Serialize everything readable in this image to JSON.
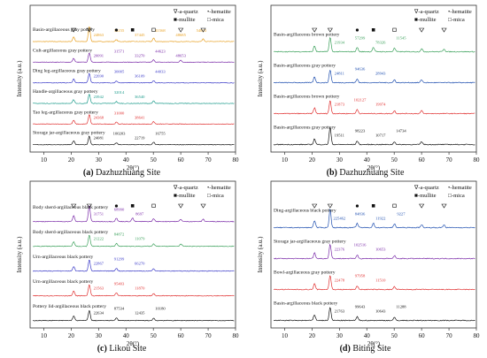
{
  "figure": {
    "x_unit_label": "2θ(°)",
    "y_label": "Intensity (a.u.)",
    "x_ticks": [
      10,
      20,
      30,
      40,
      50,
      60,
      70,
      80
    ],
    "colors": [
      "#111111",
      "#e03030",
      "#1a9a8a",
      "#3b3bc8",
      "#7a2aa8",
      "#e8a020",
      "#3aa05a",
      "#2050b0"
    ]
  },
  "chart_data": [
    {
      "type": "line",
      "caption_label": "(a)",
      "caption_text": " Dazhuzhuang Site",
      "xlabel": "2θ(°)",
      "ylabel": "Intensity (a.u.)",
      "xlim": [
        5,
        80
      ],
      "legend": {
        "qz": "∇-a-quartz",
        "hem": "•-hematite",
        "mul": "■-mullite",
        "mica": "□-mica"
      },
      "series": [
        {
          "name": "Basin-argillaceous gray pottery",
          "color": "#e8a020",
          "peaks": [
            [
              26.6,
              1.6
            ],
            [
              20.9,
              0.5
            ],
            [
              50.1,
              0.35
            ],
            [
              68.2,
              0.3
            ],
            [
              36.5,
              0.2
            ]
          ],
          "labels": [
            "24863",
            "33155",
            "37445",
            "41568",
            "48685",
            "54823"
          ]
        },
        {
          "name": "Cult-argillaceous gray pottery",
          "color": "#7a2aa8",
          "peaks": [
            [
              26.6,
              1.0
            ],
            [
              20.9,
              0.4
            ],
            [
              50.1,
              0.25
            ],
            [
              60.0,
              0.2
            ]
          ],
          "labels": [
            "20091",
            "31571",
            "33270",
            "44623",
            "48653"
          ]
        },
        {
          "name": "Ding leg-argillaceous gray pottery",
          "color": "#3b3bc8",
          "peaks": [
            [
              26.6,
              1.0
            ],
            [
              20.9,
              0.4
            ],
            [
              50.1,
              0.25
            ],
            [
              36.5,
              0.2
            ]
          ],
          "labels": [
            "22690",
            "30005",
            "36109",
            "44033"
          ]
        },
        {
          "name": "Handle-argillaceous gray pottery",
          "color": "#1a9a8a",
          "peaks": [
            [
              26.6,
              1.0
            ],
            [
              20.9,
              0.4
            ],
            [
              50.1,
              0.25
            ],
            [
              36.5,
              0.2
            ]
          ],
          "labels": [
            "23942",
            "32014",
            "36540"
          ]
        },
        {
          "name": "Tao leg-argillaceous gray pottery",
          "color": "#e03030",
          "peaks": [
            [
              26.6,
              1.0
            ],
            [
              20.9,
              0.4
            ],
            [
              50.1,
              0.25
            ],
            [
              36.5,
              0.2
            ]
          ],
          "labels": [
            "24368",
            "31000",
            "38641"
          ]
        },
        {
          "name": "Storage jar-argillaceous gray pottery",
          "color": "#111111",
          "peaks": [
            [
              26.6,
              0.9
            ],
            [
              20.9,
              0.4
            ],
            [
              50.1,
              0.25
            ],
            [
              36.5,
              0.2
            ]
          ],
          "labels": [
            "24081",
            "100203",
            "22719",
            "16755"
          ]
        }
      ]
    },
    {
      "type": "line",
      "caption_label": "(b)",
      "caption_text": " Dazhuzhuang Site",
      "xlabel": "2θ(°)",
      "ylabel": "Intensity (a.u.)",
      "xlim": [
        5,
        80
      ],
      "legend": {
        "qz": "∇-a-quartz",
        "hem": "•-hematite",
        "mul": "■-mullite",
        "mica": "□-mica"
      },
      "series": [
        {
          "name": "Basin-argillaceous brown pottery",
          "color": "#3aa05a",
          "peaks": [
            [
              26.6,
              1.0
            ],
            [
              20.9,
              0.4
            ],
            [
              36.5,
              0.3
            ],
            [
              42.4,
              0.3
            ],
            [
              50.1,
              0.25
            ],
            [
              60.0,
              0.2
            ],
            [
              68.2,
              0.2
            ]
          ],
          "labels": [
            "21934",
            "57299",
            "78326",
            "11545"
          ]
        },
        {
          "name": "Basin-argillaceous gray pottery",
          "color": "#2050b0",
          "peaks": [
            [
              26.6,
              0.9
            ],
            [
              20.9,
              0.4
            ],
            [
              36.5,
              0.25
            ],
            [
              50.1,
              0.2
            ],
            [
              60.0,
              0.2
            ]
          ],
          "labels": [
            "24811",
            "94636",
            "28943"
          ]
        },
        {
          "name": "Basin-argillaceous brown pottery",
          "color": "#e03030",
          "peaks": [
            [
              26.6,
              0.9
            ],
            [
              20.9,
              0.4
            ],
            [
              36.5,
              0.3
            ],
            [
              50.1,
              0.2
            ],
            [
              60.0,
              0.2
            ]
          ],
          "labels": [
            "21873",
            "102127",
            "19974"
          ]
        },
        {
          "name": "Basin-argillaceous gray pottery",
          "color": "#111111",
          "peaks": [
            [
              26.6,
              1.2
            ],
            [
              20.9,
              0.4
            ],
            [
              36.5,
              0.25
            ],
            [
              50.1,
              0.2
            ],
            [
              60.0,
              0.2
            ]
          ],
          "labels": [
            "19511",
            "98223",
            "10717",
            "14734"
          ]
        }
      ]
    },
    {
      "type": "line",
      "caption_label": "(c)",
      "caption_text": " Likou Site",
      "xlabel": "2θ(°)",
      "ylabel": "Intensity (a.u.)",
      "xlim": [
        5,
        80
      ],
      "legend": {
        "qz": "∇-a-quartz",
        "hem": "•-hematite",
        "mul": "■-mullite",
        "mica": "□-mica"
      },
      "series": [
        {
          "name": "Body sherd-argillaceous black pottery",
          "color": "#7a2aa8",
          "peaks": [
            [
              26.6,
              1.4
            ],
            [
              20.9,
              0.5
            ],
            [
              36.5,
              0.3
            ],
            [
              42.4,
              0.3
            ],
            [
              50.1,
              0.25
            ],
            [
              60.0,
              0.2
            ],
            [
              68.2,
              0.2
            ]
          ],
          "labels": [
            "31751",
            "68990",
            "8697"
          ]
        },
        {
          "name": "Body sherd-argillaceous black pottery",
          "color": "#3aa05a",
          "peaks": [
            [
              26.6,
              1.0
            ],
            [
              20.9,
              0.4
            ],
            [
              36.5,
              0.25
            ],
            [
              50.1,
              0.2
            ],
            [
              60.0,
              0.2
            ]
          ],
          "labels": [
            "21222",
            "84872",
            "11079"
          ]
        },
        {
          "name": "Urn-argillaceous black pottery",
          "color": "#3b3bc8",
          "peaks": [
            [
              26.6,
              1.0
            ],
            [
              20.9,
              0.4
            ],
            [
              36.5,
              0.25
            ],
            [
              50.1,
              0.2
            ]
          ],
          "labels": [
            "22867",
            "91299",
            "66270"
          ]
        },
        {
          "name": "Urn-argillaceous black pottery",
          "color": "#e03030",
          "peaks": [
            [
              26.6,
              1.0
            ],
            [
              20.9,
              0.4
            ],
            [
              36.5,
              0.25
            ],
            [
              50.1,
              0.2
            ]
          ],
          "labels": [
            "21563",
            "95403",
            "11870"
          ]
        },
        {
          "name": "Pottery lid-argillaceous black pottery",
          "color": "#111111",
          "peaks": [
            [
              26.6,
              0.9
            ],
            [
              20.9,
              0.4
            ],
            [
              36.5,
              0.25
            ],
            [
              50.1,
              0.2
            ]
          ],
          "labels": [
            "22634",
            "87534",
            "12435",
            "10180"
          ]
        }
      ]
    },
    {
      "type": "line",
      "caption_label": "(d)",
      "caption_text": " Biting Site",
      "xlabel": "2θ(°)",
      "ylabel": "Intensity (a.u.)",
      "xlim": [
        5,
        80
      ],
      "legend": {
        "qz": "∇-a-quartz",
        "hem": "•-hematite",
        "mul": "■-mullite",
        "mica": "□-mica"
      },
      "series": [
        {
          "name": "Ding-argillaceous black pottery",
          "color": "#2050b0",
          "peaks": [
            [
              26.6,
              1.3
            ],
            [
              20.9,
              0.5
            ],
            [
              36.5,
              0.3
            ],
            [
              42.4,
              0.3
            ],
            [
              50.1,
              0.25
            ],
            [
              60.0,
              0.2
            ],
            [
              68.2,
              0.2
            ]
          ],
          "labels": [
            "225462",
            "84836",
            "11922",
            "9227"
          ]
        },
        {
          "name": "Storage jar-argillaceous gray pottery",
          "color": "#7a2aa8",
          "peaks": [
            [
              26.6,
              1.0
            ],
            [
              20.9,
              0.4
            ],
            [
              36.5,
              0.25
            ],
            [
              50.1,
              0.2
            ]
          ],
          "labels": [
            "22376",
            "102516",
            "10653"
          ]
        },
        {
          "name": "Bowl-argillaceous gray pottery",
          "color": "#e03030",
          "peaks": [
            [
              26.6,
              1.0
            ],
            [
              20.9,
              0.4
            ],
            [
              36.5,
              0.25
            ],
            [
              50.1,
              0.2
            ]
          ],
          "labels": [
            "22478",
            "97958",
            "11510"
          ]
        },
        {
          "name": "Basin-argillaceous black pottery",
          "color": "#111111",
          "peaks": [
            [
              26.6,
              0.9
            ],
            [
              20.9,
              0.4
            ],
            [
              36.5,
              0.25
            ],
            [
              50.1,
              0.2
            ]
          ],
          "labels": [
            "21763",
            "99643",
            "10643",
            "11288"
          ]
        }
      ]
    }
  ]
}
